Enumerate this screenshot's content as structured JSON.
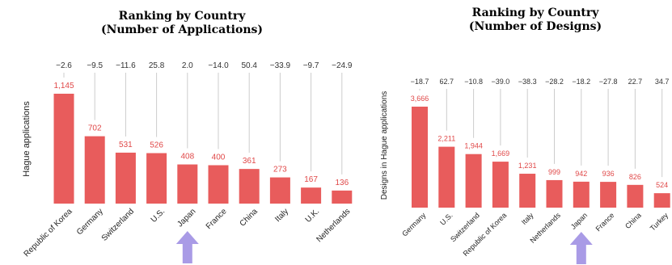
{
  "palette": {
    "bar": "#e85c5c",
    "value_label": "#e04848",
    "change_label": "#333333",
    "connector": "#cccccc",
    "arrow": "#a99be6"
  },
  "chart_data": [
    {
      "type": "bar",
      "title_line1": "Ranking by Country",
      "title_line2": "(Number of Applications)",
      "ylabel": "Hague applications",
      "categories": [
        "Republic of Korea",
        "Germany",
        "Switzerland",
        "U.S.",
        "Japan",
        "France",
        "China",
        "Italy",
        "U.K.",
        "Netherlands"
      ],
      "values": [
        1145,
        702,
        531,
        526,
        408,
        400,
        361,
        273,
        167,
        136
      ],
      "value_labels": [
        "1,145",
        "702",
        "531",
        "526",
        "408",
        "400",
        "361",
        "273",
        "167",
        "136"
      ],
      "growth_labels": [
        "−2.6",
        "−9.5",
        "−11.6",
        "25.8",
        "2.0",
        "−14.0",
        "50.4",
        "−33.9",
        "−9.7",
        "−24.9"
      ],
      "highlight_category": "Japan",
      "ylim": [
        0,
        1145
      ],
      "grid": false
    },
    {
      "type": "bar",
      "title_line1": "Ranking by Country",
      "title_line2": "(Number of Designs)",
      "ylabel": "Designs in Hague applications",
      "categories": [
        "Germany",
        "U.S.",
        "Switzerland",
        "Republic of Korea",
        "Italy",
        "Netherlands",
        "Japan",
        "France",
        "China",
        "Turkey"
      ],
      "values": [
        3666,
        2211,
        1944,
        1669,
        1231,
        999,
        942,
        936,
        826,
        524
      ],
      "value_labels": [
        "3,666",
        "2,211",
        "1,944",
        "1,669",
        "1,231",
        "999",
        "942",
        "936",
        "826",
        "524"
      ],
      "growth_labels": [
        "−18.7",
        "62.7",
        "−10.8",
        "−39.0",
        "−38.3",
        "−28.2",
        "−18.2",
        "−27.8",
        "22.7",
        "34.7"
      ],
      "highlight_category": "Japan",
      "ylim": [
        0,
        3666
      ],
      "grid": false
    }
  ]
}
